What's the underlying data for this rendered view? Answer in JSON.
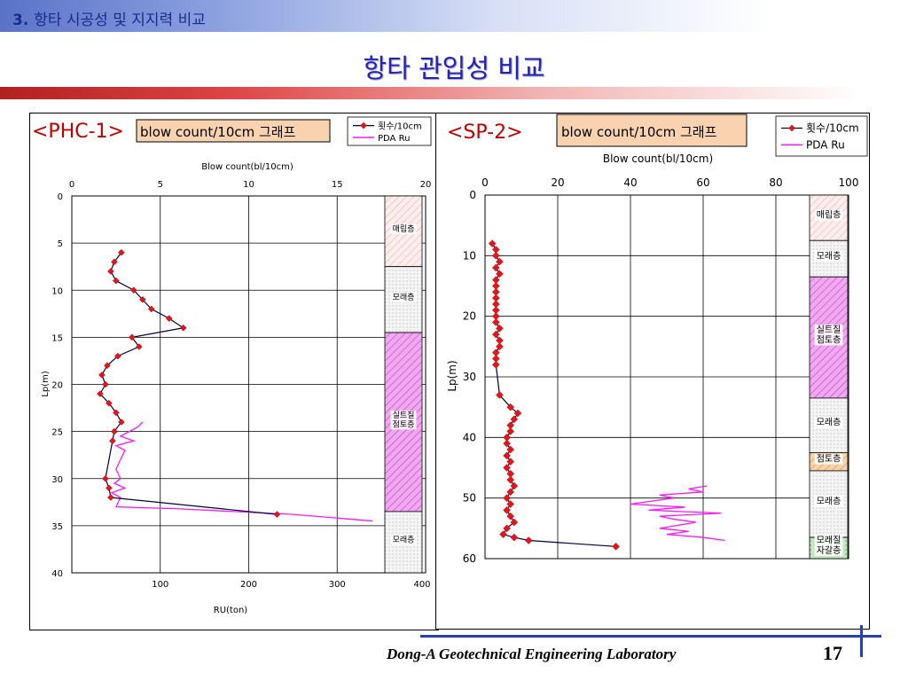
{
  "header": {
    "section_number": "3.",
    "section_title": "항타 시공성 및 지지력 비교"
  },
  "title": "항타 관입성 비교",
  "footer": {
    "lab": "Dong-A Geotechnical Engineering Laboratory",
    "page": "17"
  },
  "colors": {
    "blow": "#e8141c",
    "blow_line": "#00003a",
    "pda": "#ff18ff",
    "fill_pink": "#ffe2e2",
    "fill_gray": "#ececec",
    "fill_purple": "#ea90ea",
    "fill_orange": "#f6c89c",
    "fill_green": "#b6e2b6"
  },
  "chart_data": [
    {
      "type": "scatter",
      "chart_id": "PHC-1",
      "tag": "<PHC-1>",
      "caption": "blow count/10cm 그래프",
      "xlabel_top": "Blow count(bl/10cm)",
      "xlabel_bottom": "RU(ton)",
      "ylabel": "Lp(m)",
      "xlim_top": [
        0,
        20
      ],
      "xticks_top": [
        0,
        5,
        10,
        15,
        20
      ],
      "xlim_bottom": [
        0,
        400
      ],
      "xticks_bottom": [
        100,
        200,
        300,
        400
      ],
      "ylim": [
        0,
        40
      ],
      "yticks": [
        0,
        5,
        10,
        15,
        20,
        25,
        30,
        35,
        40
      ],
      "legend": [
        "횟수/10cm",
        "PDA Ru"
      ],
      "series": [
        {
          "name": "횟수/10cm",
          "x": [
            2.8,
            2.4,
            2.2,
            2.5,
            3.5,
            4.0,
            4.5,
            5.5,
            6.3,
            3.4,
            3.8,
            2.6,
            2.0,
            1.7,
            1.9,
            1.6,
            2.1,
            2.5,
            2.8,
            2.4,
            2.3,
            1.9,
            2.1,
            2.2,
            11.6
          ],
          "y": [
            6,
            7,
            8,
            9,
            10,
            11,
            12,
            13,
            14,
            15,
            16,
            17,
            18,
            19,
            20,
            21,
            22,
            23,
            24,
            25,
            26,
            30,
            31,
            32,
            33.8
          ]
        },
        {
          "name": "PDA Ru",
          "x": [
            80,
            75,
            65,
            55,
            70,
            50,
            60,
            55,
            50,
            55,
            48,
            60,
            45,
            55,
            50,
            120,
            250,
            340
          ],
          "y": [
            24,
            24.5,
            25,
            25.5,
            26,
            26.5,
            27,
            28,
            29,
            30,
            30.5,
            31,
            31.5,
            32,
            33,
            33.2,
            33.8,
            34.5
          ]
        }
      ],
      "layers": [
        {
          "name": "매립층",
          "from": 0,
          "to": 7.5,
          "fill": "pink"
        },
        {
          "name": "모래층",
          "from": 7.5,
          "to": 14.5,
          "fill": "gray"
        },
        {
          "name": "실트질 점토층",
          "from": 14.5,
          "to": 33.5,
          "fill": "purple"
        },
        {
          "name": "모래층",
          "from": 33.5,
          "to": 40,
          "fill": "gray"
        }
      ]
    },
    {
      "type": "scatter",
      "chart_id": "SP-2",
      "tag": "<SP-2>",
      "caption": "blow count/10cm 그래프",
      "xlabel_top": "Blow count(bl/10cm)",
      "ylabel": "Lp(m)",
      "xlim_top": [
        0,
        100
      ],
      "xticks_top": [
        0,
        20,
        40,
        60,
        80,
        100
      ],
      "ylim": [
        0,
        60
      ],
      "yticks": [
        0,
        10,
        20,
        30,
        40,
        50,
        60
      ],
      "legend": [
        "횟수/10cm",
        "PDA Ru"
      ],
      "series": [
        {
          "name": "횟수/10cm",
          "x": [
            2,
            3,
            3,
            4,
            3,
            4,
            3,
            3,
            3,
            3,
            3,
            3,
            3,
            3,
            4,
            3,
            4,
            4,
            3,
            3,
            3,
            4,
            7,
            9,
            8,
            7,
            7,
            6,
            6,
            7,
            6,
            7,
            6,
            7,
            7,
            8,
            7,
            6,
            7,
            6,
            7,
            8,
            6,
            5,
            8,
            12,
            36
          ],
          "y": [
            8,
            9,
            10,
            11,
            12,
            13,
            14,
            15,
            16,
            17,
            18,
            19,
            20,
            21,
            22,
            23,
            24,
            25,
            26,
            27,
            28,
            33,
            35,
            36,
            37,
            38,
            39,
            40,
            41,
            42,
            43,
            44,
            45,
            46,
            47,
            48,
            49,
            50,
            51,
            52,
            53,
            54,
            55,
            56,
            56.5,
            57,
            58
          ]
        },
        {
          "name": "PDA Ru",
          "x": [
            61,
            56,
            60,
            48,
            52,
            40,
            55,
            45,
            65,
            48,
            52,
            58,
            48,
            56,
            50,
            60,
            66
          ],
          "y": [
            48,
            48.5,
            49,
            49.5,
            50,
            51,
            51.5,
            52,
            52.5,
            53,
            53.5,
            54,
            55,
            55.5,
            56,
            56.5,
            57
          ]
        }
      ],
      "layers": [
        {
          "name": "매립층",
          "from": 0,
          "to": 7.5,
          "fill": "pink"
        },
        {
          "name": "모래층",
          "from": 7.5,
          "to": 13.5,
          "fill": "gray"
        },
        {
          "name": "실트질 점토층",
          "from": 13.5,
          "to": 33.5,
          "fill": "purple"
        },
        {
          "name": "모래층",
          "from": 33.5,
          "to": 42.5,
          "fill": "gray"
        },
        {
          "name": "점토층",
          "from": 42.5,
          "to": 45.5,
          "fill": "orange"
        },
        {
          "name": "모래층",
          "from": 45.5,
          "to": 56.5,
          "fill": "gray"
        },
        {
          "name": "모래질 자갈층",
          "from": 56.5,
          "to": 60,
          "fill": "green"
        }
      ]
    }
  ]
}
